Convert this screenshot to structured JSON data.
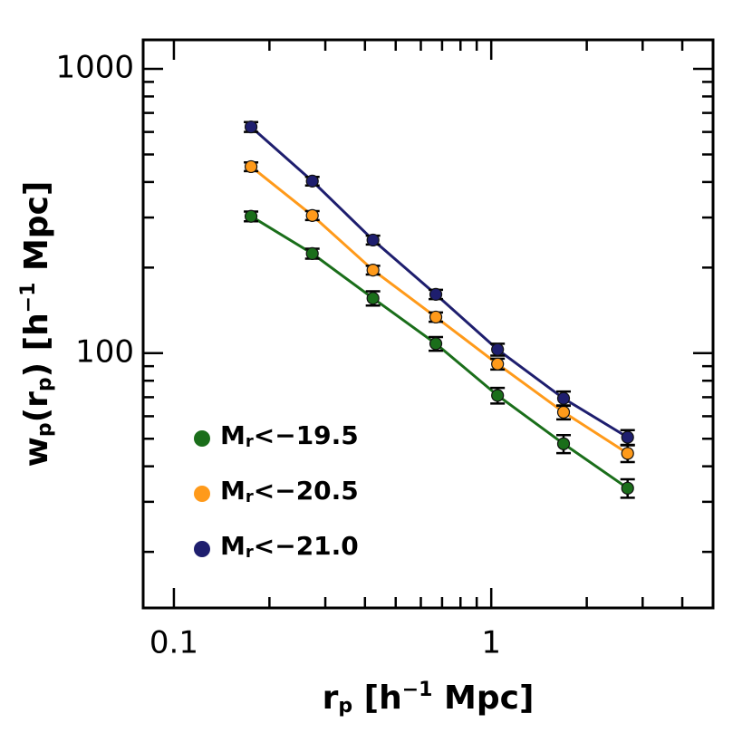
{
  "chart_data": {
    "type": "scatter",
    "x": [
      0.175,
      0.273,
      0.424,
      0.669,
      1.047,
      1.69,
      2.69
    ],
    "series": [
      {
        "name": "Mr<−19.5",
        "color": "#1a6e1a",
        "values": [
          303,
          224,
          156,
          108,
          71,
          48,
          33.5
        ],
        "errors": [
          12,
          9,
          9,
          6,
          4.5,
          3.5,
          2.5
        ]
      },
      {
        "name": "Mr<−20.5",
        "color": "#ff9a1a",
        "values": [
          453,
          305,
          196,
          134,
          91.6,
          62,
          44.4
        ],
        "errors": [
          16,
          11,
          7,
          5,
          4,
          3.5,
          3
        ]
      },
      {
        "name": "Mr<−21.0",
        "color": "#1e1e6e",
        "values": [
          625,
          403,
          250,
          161,
          103,
          69.3,
          50.6
        ],
        "errors": [
          25,
          14,
          9,
          6,
          5,
          4,
          3
        ]
      }
    ],
    "x_label": "rp [h−1 Mpc]",
    "y_label": "wp(rp) [h−1 Mpc]",
    "xscale": "log",
    "yscale": "log",
    "xlim": [
      0.08,
      5
    ],
    "ylim": [
      12.7,
      1265
    ],
    "xticks": [
      0.1,
      1
    ],
    "xticks_minor": [
      0.2,
      0.3,
      0.4,
      0.5,
      0.6,
      0.7,
      0.8,
      0.9,
      2,
      3,
      4,
      5
    ],
    "yticks": [
      100,
      1000
    ],
    "yticks_minor": [
      20,
      30,
      40,
      50,
      60,
      70,
      80,
      90,
      200,
      300,
      400,
      500,
      600,
      700,
      800,
      900
    ],
    "legend": "lower left"
  }
}
